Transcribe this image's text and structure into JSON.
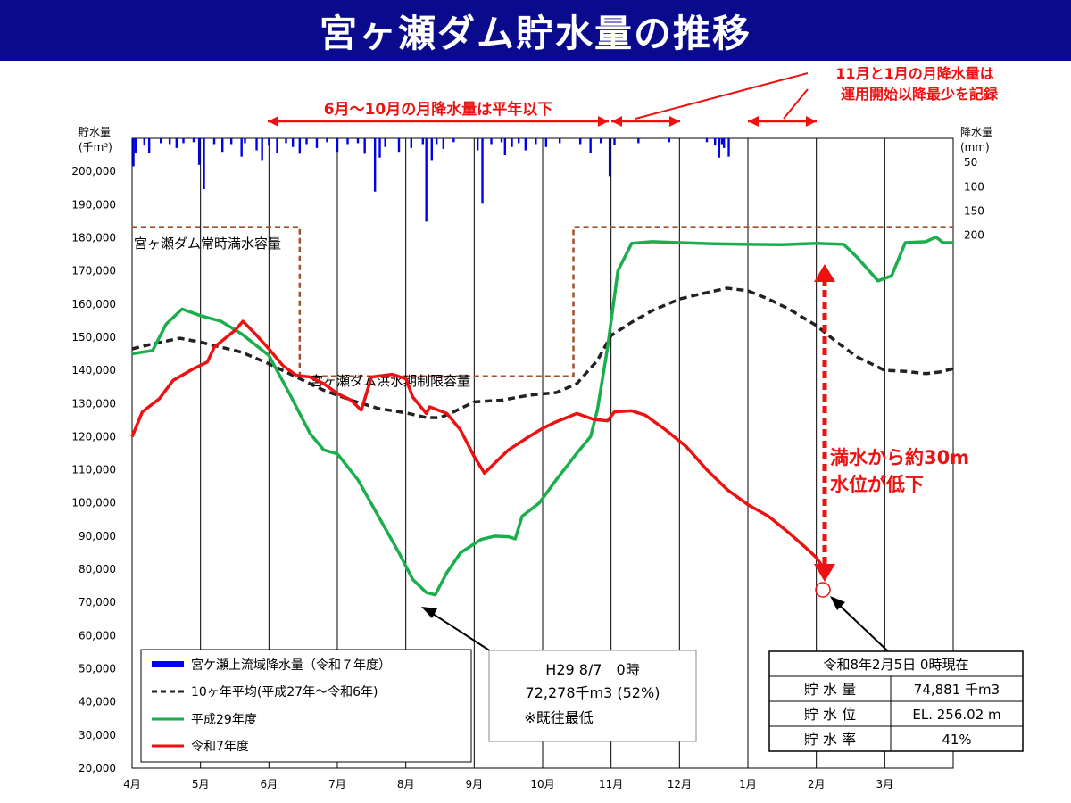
{
  "title": "宮ヶ瀬ダム貯水量の推移",
  "chart_data": {
    "type": "line",
    "x_categories": [
      "4月",
      "5月",
      "6月",
      "7月",
      "8月",
      "9月",
      "10月",
      "11月",
      "12月",
      "1月",
      "2月",
      "3月"
    ],
    "y_axis_left": {
      "label_line1": "貯水量",
      "label_line2": "(千m³)",
      "min": 20000,
      "max": 210000,
      "ticks": [
        "20,000",
        "30,000",
        "40,000",
        "50,000",
        "60,000",
        "70,000",
        "80,000",
        "90,000",
        "100,000",
        "110,000",
        "120,000",
        "130,000",
        "140,000",
        "150,000",
        "160,000",
        "170,000",
        "180,000",
        "190,000",
        "200,000"
      ]
    },
    "y_axis_right": {
      "label_line1": "降水量",
      "label_line2": "(mm)",
      "min": 0,
      "max": 200,
      "ticks": [
        "50",
        "100",
        "150",
        "200"
      ]
    },
    "grid": "vertical month lines",
    "legend": {
      "placement": "bottom-left",
      "items": [
        {
          "label": "宮ケ瀬上流域降水量（令和７年度）",
          "style": "bar",
          "color": "#0000ff"
        },
        {
          "label": "10ヶ年平均(平成27年～令和6年)",
          "style": "dashed",
          "color": "#222222"
        },
        {
          "label": "平成29年度",
          "style": "solid",
          "color": "#1aae4c"
        },
        {
          "label": "令和7年度",
          "style": "solid",
          "color": "#ee1111"
        }
      ]
    },
    "capacity_labels": {
      "normal": "宮ヶ瀬ダム常時満水容量",
      "flood": "宮ヶ瀬ダム洪水期制限容量"
    },
    "capacity_values": {
      "normal": 183200,
      "flood": 138200,
      "flood_start_month": 2.45,
      "flood_end_month": 6.45
    },
    "series": [
      {
        "key": "avg",
        "color": "#222222",
        "dashed": true,
        "points": [
          [
            0,
            146500
          ],
          [
            0.3,
            148000
          ],
          [
            0.7,
            149700
          ],
          [
            1.0,
            148500
          ],
          [
            1.3,
            147000
          ],
          [
            1.6,
            145500
          ],
          [
            2.0,
            142000
          ],
          [
            2.4,
            138000
          ],
          [
            2.8,
            134000
          ],
          [
            3.2,
            131000
          ],
          [
            3.6,
            128500
          ],
          [
            4.0,
            127200
          ],
          [
            4.3,
            125800
          ],
          [
            4.5,
            125700
          ],
          [
            4.7,
            127500
          ],
          [
            5.0,
            130500
          ],
          [
            5.4,
            131000
          ],
          [
            5.8,
            132500
          ],
          [
            6.2,
            133300
          ],
          [
            6.5,
            136000
          ],
          [
            6.8,
            143000
          ],
          [
            7.0,
            150500
          ],
          [
            7.3,
            154500
          ],
          [
            7.6,
            158000
          ],
          [
            8.0,
            161500
          ],
          [
            8.3,
            163000
          ],
          [
            8.7,
            164800
          ],
          [
            9.0,
            164000
          ],
          [
            9.3,
            161500
          ],
          [
            9.6,
            158500
          ],
          [
            10.0,
            153500
          ],
          [
            10.3,
            148500
          ],
          [
            10.6,
            144000
          ],
          [
            11.0,
            140000
          ],
          [
            11.3,
            139700
          ],
          [
            11.6,
            139000
          ],
          [
            11.8,
            139500
          ],
          [
            12.0,
            140500
          ]
        ]
      },
      {
        "key": "h29",
        "color": "#1aae4c",
        "dashed": false,
        "points": [
          [
            0,
            145000
          ],
          [
            0.3,
            146000
          ],
          [
            0.5,
            154000
          ],
          [
            0.73,
            158500
          ],
          [
            1.0,
            156500
          ],
          [
            1.3,
            154800
          ],
          [
            1.6,
            151000
          ],
          [
            2.0,
            144500
          ],
          [
            2.3,
            133000
          ],
          [
            2.6,
            121000
          ],
          [
            2.8,
            116000
          ],
          [
            3.0,
            114800
          ],
          [
            3.3,
            107000
          ],
          [
            3.6,
            96000
          ],
          [
            3.9,
            85000
          ],
          [
            4.1,
            77000
          ],
          [
            4.3,
            73000
          ],
          [
            4.43,
            72300
          ],
          [
            4.6,
            79000
          ],
          [
            4.8,
            85000
          ],
          [
            5.1,
            89000
          ],
          [
            5.3,
            90000
          ],
          [
            5.5,
            89800
          ],
          [
            5.6,
            89200
          ],
          [
            5.7,
            96000
          ],
          [
            5.95,
            100000
          ],
          [
            6.2,
            107000
          ],
          [
            6.5,
            115000
          ],
          [
            6.7,
            120000
          ],
          [
            6.8,
            128000
          ],
          [
            6.95,
            147000
          ],
          [
            7.1,
            170000
          ],
          [
            7.3,
            178300
          ],
          [
            7.6,
            178800
          ],
          [
            8.0,
            178500
          ],
          [
            8.5,
            178200
          ],
          [
            9.0,
            178000
          ],
          [
            9.5,
            177900
          ],
          [
            10.0,
            178300
          ],
          [
            10.4,
            178000
          ],
          [
            10.6,
            174000
          ],
          [
            10.9,
            167000
          ],
          [
            11.1,
            168500
          ],
          [
            11.3,
            178500
          ],
          [
            11.6,
            178800
          ],
          [
            11.75,
            180200
          ],
          [
            11.85,
            178500
          ],
          [
            12.0,
            178500
          ]
        ]
      },
      {
        "key": "r7",
        "color": "#ee1111",
        "dashed": false,
        "points": [
          [
            0,
            120000
          ],
          [
            0.15,
            127500
          ],
          [
            0.4,
            131500
          ],
          [
            0.6,
            137000
          ],
          [
            0.9,
            140500
          ],
          [
            1.1,
            142500
          ],
          [
            1.2,
            147000
          ],
          [
            1.5,
            152000
          ],
          [
            1.62,
            154800
          ],
          [
            1.8,
            151000
          ],
          [
            2.0,
            146500
          ],
          [
            2.2,
            141500
          ],
          [
            2.4,
            138500
          ],
          [
            2.6,
            138000
          ],
          [
            2.8,
            136000
          ],
          [
            3.0,
            133000
          ],
          [
            3.2,
            131000
          ],
          [
            3.35,
            128000
          ],
          [
            3.5,
            138000
          ],
          [
            3.8,
            138800
          ],
          [
            4.0,
            137500
          ],
          [
            4.1,
            132000
          ],
          [
            4.3,
            127000
          ],
          [
            4.35,
            129000
          ],
          [
            4.6,
            127000
          ],
          [
            4.8,
            122000
          ],
          [
            5.0,
            114000
          ],
          [
            5.15,
            109000
          ],
          [
            5.3,
            112000
          ],
          [
            5.5,
            116000
          ],
          [
            5.8,
            120000
          ],
          [
            6.0,
            122500
          ],
          [
            6.2,
            124500
          ],
          [
            6.5,
            127000
          ],
          [
            6.75,
            125200
          ],
          [
            6.95,
            124800
          ],
          [
            7.05,
            127500
          ],
          [
            7.3,
            127800
          ],
          [
            7.5,
            126500
          ],
          [
            7.8,
            122000
          ],
          [
            8.1,
            117000
          ],
          [
            8.4,
            110000
          ],
          [
            8.7,
            104000
          ],
          [
            9.0,
            99500
          ],
          [
            9.3,
            96000
          ],
          [
            9.6,
            91000
          ],
          [
            9.9,
            85500
          ],
          [
            10.0,
            83500
          ],
          [
            10.1,
            80500
          ],
          [
            10.15,
            78500
          ]
        ]
      }
    ],
    "precip_mm": [
      [
        0.02,
        58
      ],
      [
        0.05,
        30
      ],
      [
        0.18,
        15
      ],
      [
        0.25,
        30
      ],
      [
        0.42,
        10
      ],
      [
        0.55,
        12
      ],
      [
        0.65,
        20
      ],
      [
        0.75,
        10
      ],
      [
        0.9,
        8
      ],
      [
        0.98,
        55
      ],
      [
        1.05,
        105
      ],
      [
        1.2,
        12
      ],
      [
        1.32,
        28
      ],
      [
        1.45,
        12
      ],
      [
        1.6,
        38
      ],
      [
        1.65,
        10
      ],
      [
        1.82,
        25
      ],
      [
        1.9,
        45
      ],
      [
        2.0,
        14
      ],
      [
        2.12,
        30
      ],
      [
        2.25,
        10
      ],
      [
        2.35,
        18
      ],
      [
        2.45,
        32
      ],
      [
        2.55,
        12
      ],
      [
        2.7,
        20
      ],
      [
        2.85,
        8
      ],
      [
        3.0,
        28
      ],
      [
        3.15,
        12
      ],
      [
        3.3,
        10
      ],
      [
        3.4,
        32
      ],
      [
        3.55,
        110
      ],
      [
        3.62,
        40
      ],
      [
        3.7,
        18
      ],
      [
        3.9,
        28
      ],
      [
        4.08,
        20
      ],
      [
        4.25,
        12
      ],
      [
        4.3,
        172
      ],
      [
        4.38,
        45
      ],
      [
        4.45,
        12
      ],
      [
        4.55,
        22
      ],
      [
        4.7,
        8
      ],
      [
        5.05,
        25
      ],
      [
        5.12,
        135
      ],
      [
        5.25,
        12
      ],
      [
        5.4,
        8
      ],
      [
        5.45,
        35
      ],
      [
        5.55,
        18
      ],
      [
        5.65,
        10
      ],
      [
        5.75,
        25
      ],
      [
        5.9,
        12
      ],
      [
        6.05,
        18
      ],
      [
        6.25,
        10
      ],
      [
        6.55,
        12
      ],
      [
        6.7,
        30
      ],
      [
        6.85,
        10
      ],
      [
        6.98,
        78
      ],
      [
        7.05,
        14
      ],
      [
        7.4,
        10
      ],
      [
        7.85,
        8
      ],
      [
        8.4,
        8
      ],
      [
        8.52,
        15
      ],
      [
        8.58,
        40
      ],
      [
        8.62,
        12
      ],
      [
        8.65,
        20
      ],
      [
        8.72,
        38
      ]
    ]
  },
  "annotations": {
    "top_range": "6月～10月の月降水量は平年以下",
    "top_right_line1": "11月と1月の月降水量は",
    "top_right_line2": "運用開始以降最少を記録",
    "drop_line1": "満水から約30m",
    "drop_line2": "水位が低下"
  },
  "min_box": {
    "line1": "H29 8/7　0時",
    "line2": "72,278千m3 (52%)",
    "line3": "※既往最低"
  },
  "status_box": {
    "header": "令和8年2月5日 0時現在",
    "rows": [
      {
        "label": "貯 水 量",
        "value": "74,881 千m3"
      },
      {
        "label": "貯 水 位",
        "value": "EL. 256.02 m"
      },
      {
        "label": "貯 水 率",
        "value": "41%"
      }
    ]
  }
}
